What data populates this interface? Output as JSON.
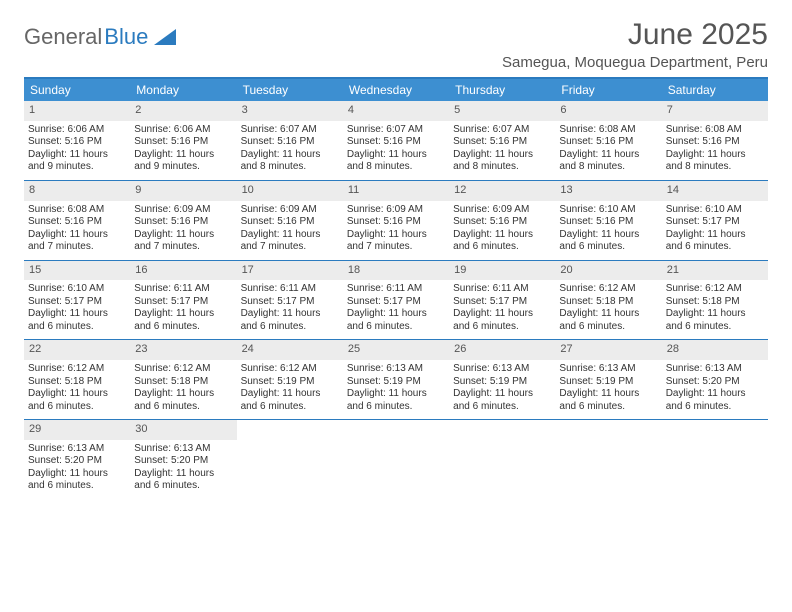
{
  "logo": {
    "text1": "General",
    "text2": "Blue"
  },
  "title": "June 2025",
  "location": "Samegua, Moquegua Department, Peru",
  "colors": {
    "header_bar": "#3d8fd1",
    "border": "#2b7bbf",
    "daynum_bg": "#ececec",
    "text": "#333333",
    "title_text": "#555555"
  },
  "weekdays": [
    "Sunday",
    "Monday",
    "Tuesday",
    "Wednesday",
    "Thursday",
    "Friday",
    "Saturday"
  ],
  "weeks": [
    [
      {
        "n": "1",
        "sr": "Sunrise: 6:06 AM",
        "ss": "Sunset: 5:16 PM",
        "dl": "Daylight: 11 hours and 9 minutes."
      },
      {
        "n": "2",
        "sr": "Sunrise: 6:06 AM",
        "ss": "Sunset: 5:16 PM",
        "dl": "Daylight: 11 hours and 9 minutes."
      },
      {
        "n": "3",
        "sr": "Sunrise: 6:07 AM",
        "ss": "Sunset: 5:16 PM",
        "dl": "Daylight: 11 hours and 8 minutes."
      },
      {
        "n": "4",
        "sr": "Sunrise: 6:07 AM",
        "ss": "Sunset: 5:16 PM",
        "dl": "Daylight: 11 hours and 8 minutes."
      },
      {
        "n": "5",
        "sr": "Sunrise: 6:07 AM",
        "ss": "Sunset: 5:16 PM",
        "dl": "Daylight: 11 hours and 8 minutes."
      },
      {
        "n": "6",
        "sr": "Sunrise: 6:08 AM",
        "ss": "Sunset: 5:16 PM",
        "dl": "Daylight: 11 hours and 8 minutes."
      },
      {
        "n": "7",
        "sr": "Sunrise: 6:08 AM",
        "ss": "Sunset: 5:16 PM",
        "dl": "Daylight: 11 hours and 8 minutes."
      }
    ],
    [
      {
        "n": "8",
        "sr": "Sunrise: 6:08 AM",
        "ss": "Sunset: 5:16 PM",
        "dl": "Daylight: 11 hours and 7 minutes."
      },
      {
        "n": "9",
        "sr": "Sunrise: 6:09 AM",
        "ss": "Sunset: 5:16 PM",
        "dl": "Daylight: 11 hours and 7 minutes."
      },
      {
        "n": "10",
        "sr": "Sunrise: 6:09 AM",
        "ss": "Sunset: 5:16 PM",
        "dl": "Daylight: 11 hours and 7 minutes."
      },
      {
        "n": "11",
        "sr": "Sunrise: 6:09 AM",
        "ss": "Sunset: 5:16 PM",
        "dl": "Daylight: 11 hours and 7 minutes."
      },
      {
        "n": "12",
        "sr": "Sunrise: 6:09 AM",
        "ss": "Sunset: 5:16 PM",
        "dl": "Daylight: 11 hours and 6 minutes."
      },
      {
        "n": "13",
        "sr": "Sunrise: 6:10 AM",
        "ss": "Sunset: 5:16 PM",
        "dl": "Daylight: 11 hours and 6 minutes."
      },
      {
        "n": "14",
        "sr": "Sunrise: 6:10 AM",
        "ss": "Sunset: 5:17 PM",
        "dl": "Daylight: 11 hours and 6 minutes."
      }
    ],
    [
      {
        "n": "15",
        "sr": "Sunrise: 6:10 AM",
        "ss": "Sunset: 5:17 PM",
        "dl": "Daylight: 11 hours and 6 minutes."
      },
      {
        "n": "16",
        "sr": "Sunrise: 6:11 AM",
        "ss": "Sunset: 5:17 PM",
        "dl": "Daylight: 11 hours and 6 minutes."
      },
      {
        "n": "17",
        "sr": "Sunrise: 6:11 AM",
        "ss": "Sunset: 5:17 PM",
        "dl": "Daylight: 11 hours and 6 minutes."
      },
      {
        "n": "18",
        "sr": "Sunrise: 6:11 AM",
        "ss": "Sunset: 5:17 PM",
        "dl": "Daylight: 11 hours and 6 minutes."
      },
      {
        "n": "19",
        "sr": "Sunrise: 6:11 AM",
        "ss": "Sunset: 5:17 PM",
        "dl": "Daylight: 11 hours and 6 minutes."
      },
      {
        "n": "20",
        "sr": "Sunrise: 6:12 AM",
        "ss": "Sunset: 5:18 PM",
        "dl": "Daylight: 11 hours and 6 minutes."
      },
      {
        "n": "21",
        "sr": "Sunrise: 6:12 AM",
        "ss": "Sunset: 5:18 PM",
        "dl": "Daylight: 11 hours and 6 minutes."
      }
    ],
    [
      {
        "n": "22",
        "sr": "Sunrise: 6:12 AM",
        "ss": "Sunset: 5:18 PM",
        "dl": "Daylight: 11 hours and 6 minutes."
      },
      {
        "n": "23",
        "sr": "Sunrise: 6:12 AM",
        "ss": "Sunset: 5:18 PM",
        "dl": "Daylight: 11 hours and 6 minutes."
      },
      {
        "n": "24",
        "sr": "Sunrise: 6:12 AM",
        "ss": "Sunset: 5:19 PM",
        "dl": "Daylight: 11 hours and 6 minutes."
      },
      {
        "n": "25",
        "sr": "Sunrise: 6:13 AM",
        "ss": "Sunset: 5:19 PM",
        "dl": "Daylight: 11 hours and 6 minutes."
      },
      {
        "n": "26",
        "sr": "Sunrise: 6:13 AM",
        "ss": "Sunset: 5:19 PM",
        "dl": "Daylight: 11 hours and 6 minutes."
      },
      {
        "n": "27",
        "sr": "Sunrise: 6:13 AM",
        "ss": "Sunset: 5:19 PM",
        "dl": "Daylight: 11 hours and 6 minutes."
      },
      {
        "n": "28",
        "sr": "Sunrise: 6:13 AM",
        "ss": "Sunset: 5:20 PM",
        "dl": "Daylight: 11 hours and 6 minutes."
      }
    ],
    [
      {
        "n": "29",
        "sr": "Sunrise: 6:13 AM",
        "ss": "Sunset: 5:20 PM",
        "dl": "Daylight: 11 hours and 6 minutes."
      },
      {
        "n": "30",
        "sr": "Sunrise: 6:13 AM",
        "ss": "Sunset: 5:20 PM",
        "dl": "Daylight: 11 hours and 6 minutes."
      },
      null,
      null,
      null,
      null,
      null
    ]
  ]
}
